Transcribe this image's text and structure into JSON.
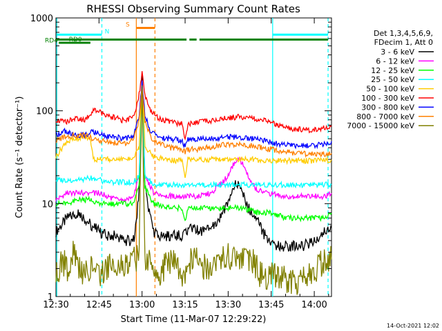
{
  "chart_data": {
    "type": "line",
    "title": "RHESSI Observing Summary Count Rates",
    "xlabel": "Start Time (11-Mar-07 12:29:22)",
    "ylabel": "Count Rate (s⁻¹ detector⁻¹)",
    "y_scale": "log",
    "ylim": [
      1,
      1000
    ],
    "xlim_minutes_after_1230": [
      0,
      96
    ],
    "x_tick_labels": [
      "12:30",
      "12:45",
      "13:00",
      "13:15",
      "13:30",
      "13:45",
      "14:00"
    ],
    "x_tick_minutes": [
      0,
      15,
      30,
      45,
      60,
      75,
      90
    ],
    "y_tick_labels": [
      "1",
      "10",
      "100",
      "1000"
    ],
    "y_tick_values": [
      1,
      10,
      100,
      1000
    ],
    "legend_header": [
      "Det 1,3,4,5,6,9,",
      "FDecim 1, Att 0"
    ],
    "legend_position": "right",
    "series": [
      {
        "name": "3 - 6 keV",
        "color": "#000000",
        "x": [
          0,
          4,
          8,
          12,
          15,
          18,
          21,
          24,
          27,
          28,
          29,
          30,
          31,
          34,
          36,
          40,
          44,
          46,
          48,
          50,
          52,
          55,
          57,
          59,
          61,
          63,
          65,
          67,
          70,
          72,
          75,
          78,
          82,
          86,
          90,
          94,
          96
        ],
        "y": [
          5,
          7,
          8,
          6,
          5,
          4.5,
          4.5,
          4,
          4,
          6,
          14,
          230,
          14,
          5,
          4.5,
          4.5,
          4.5,
          5,
          5.5,
          5,
          5,
          6,
          7,
          9,
          13,
          17,
          13,
          9,
          7,
          5,
          3.5,
          3.5,
          3.5,
          3.5,
          4,
          5,
          5.5
        ]
      },
      {
        "name": "6 - 12 keV",
        "color": "#ff00ff",
        "x": [
          0,
          4,
          8,
          12,
          15,
          18,
          21,
          24,
          27,
          29,
          30,
          31,
          34,
          40,
          46,
          50,
          54,
          58,
          60,
          62,
          64,
          66,
          68,
          70,
          74,
          80,
          86,
          90,
          94,
          96
        ],
        "y": [
          11,
          13,
          13,
          13,
          13,
          12,
          11,
          11,
          12,
          20,
          200,
          20,
          13,
          12,
          12,
          12,
          13,
          17,
          20,
          27,
          30,
          24,
          17,
          14,
          13,
          12,
          12,
          12,
          12,
          13
        ]
      },
      {
        "name": "12 - 25 keV",
        "color": "#00ff00",
        "x": [
          0,
          4,
          8,
          12,
          15,
          18,
          21,
          24,
          27,
          29,
          30,
          31,
          34,
          40,
          44,
          45,
          46,
          50,
          55,
          60,
          65,
          70,
          75,
          80,
          86,
          90,
          94,
          96
        ],
        "y": [
          10,
          10,
          11,
          11,
          10,
          10,
          10,
          10,
          10,
          15,
          200,
          15,
          10,
          9,
          9,
          6.5,
          9,
          9,
          9,
          9,
          9,
          8,
          8,
          7,
          7,
          7,
          7,
          8
        ]
      },
      {
        "name": "25 - 50 keV",
        "color": "#00ffff",
        "x": [
          0,
          4,
          8,
          12,
          15,
          18,
          21,
          24,
          27,
          29,
          30,
          31,
          34,
          40,
          46,
          52,
          58,
          64,
          70,
          76,
          82,
          88,
          94,
          96
        ],
        "y": [
          18,
          18,
          18,
          19,
          18,
          17,
          17,
          17,
          17,
          20,
          200,
          20,
          16,
          16,
          16,
          16,
          16,
          16,
          16,
          16,
          16,
          16,
          16,
          16
        ]
      },
      {
        "name": "50 - 100 keV",
        "color": "#ffcc00",
        "x": [
          0,
          3,
          6,
          10,
          12,
          13,
          15,
          18,
          21,
          24,
          27,
          29,
          30,
          31,
          34,
          38,
          42,
          44,
          45,
          46,
          50,
          56,
          62,
          68,
          74,
          80,
          86,
          90,
          94,
          96
        ],
        "y": [
          32,
          44,
          50,
          52,
          50,
          30,
          30,
          30,
          30,
          30,
          32,
          40,
          200,
          42,
          32,
          30,
          29,
          29,
          20,
          30,
          30,
          30,
          30,
          30,
          29,
          29,
          29,
          29,
          29,
          30
        ]
      },
      {
        "name": "100 - 300 keV",
        "color": "#ff0000",
        "x": [
          0,
          3,
          6,
          10,
          13,
          15,
          18,
          21,
          24,
          27,
          29,
          30,
          31,
          33,
          36,
          40,
          44,
          45,
          46,
          50,
          56,
          60,
          64,
          68,
          72,
          76,
          80,
          84,
          88,
          92,
          96
        ],
        "y": [
          80,
          75,
          82,
          80,
          100,
          98,
          90,
          83,
          78,
          85,
          150,
          250,
          150,
          100,
          82,
          75,
          72,
          50,
          72,
          75,
          80,
          84,
          86,
          84,
          79,
          72,
          66,
          63,
          62,
          63,
          70
        ]
      },
      {
        "name": "300 - 800 keV",
        "color": "#0000ff",
        "x": [
          0,
          3,
          6,
          10,
          13,
          15,
          18,
          21,
          24,
          27,
          29,
          30,
          31,
          33,
          36,
          40,
          44,
          45,
          46,
          50,
          56,
          60,
          64,
          68,
          72,
          76,
          80,
          84,
          88,
          92,
          96
        ],
        "y": [
          55,
          60,
          55,
          55,
          60,
          56,
          53,
          52,
          50,
          54,
          90,
          200,
          90,
          60,
          52,
          50,
          48,
          40,
          49,
          50,
          51,
          52,
          52,
          50,
          48,
          45,
          43,
          42,
          42,
          43,
          47
        ]
      },
      {
        "name": "800 - 7000 keV",
        "color": "#ff8000",
        "x": [
          0,
          3,
          6,
          10,
          13,
          15,
          18,
          21,
          24,
          27,
          29,
          30,
          31,
          33,
          36,
          40,
          44,
          45,
          46,
          50,
          56,
          60,
          64,
          68,
          72,
          76,
          80,
          84,
          88,
          92,
          96
        ],
        "y": [
          48,
          52,
          55,
          54,
          50,
          48,
          46,
          45,
          44,
          48,
          80,
          180,
          80,
          52,
          44,
          40,
          38,
          36,
          38,
          39,
          42,
          44,
          43,
          42,
          40,
          38,
          36,
          35,
          34,
          34,
          35
        ]
      },
      {
        "name": "7000 - 15000 keV",
        "color": "#808000",
        "x": [
          0,
          2,
          4,
          6,
          10,
          12,
          16,
          20,
          24,
          28,
          29,
          30,
          31,
          32,
          36,
          40,
          44,
          48,
          52,
          56,
          60,
          64,
          68,
          72,
          76,
          80,
          84,
          88,
          92,
          96
        ],
        "y": [
          1.6,
          2.5,
          2,
          3,
          1.6,
          2.2,
          1.7,
          2.5,
          2,
          2.6,
          2.8,
          190,
          2.8,
          2.4,
          1.8,
          2.5,
          1.6,
          2.8,
          2,
          2.5,
          2.7,
          2.3,
          2.5,
          1.6,
          1.8,
          1.5,
          1.4,
          1.6,
          2.2,
          2.5
        ]
      }
    ],
    "annotations": {
      "vertical_lines": [
        {
          "minute": 0.3,
          "color": "#00ffff",
          "style": "solid"
        },
        {
          "minute": 16,
          "color": "#00ffff",
          "style": "dashed"
        },
        {
          "minute": 28,
          "color": "#ff8000",
          "style": "solid"
        },
        {
          "minute": 34.5,
          "color": "#ff8000",
          "style": "dashed"
        },
        {
          "minute": 75.5,
          "color": "#00ffff",
          "style": "solid"
        },
        {
          "minute": 94.8,
          "color": "#00ffff",
          "style": "dashed"
        }
      ],
      "bars": [
        {
          "label": "N",
          "color": "#00ffff",
          "segments": [
            [
              0.3,
              16
            ],
            [
              75.5,
              94.8
            ]
          ],
          "level": 660
        },
        {
          "label": "S",
          "color": "#ff8000",
          "segments": [
            [
              28,
              34.5
            ]
          ],
          "level": 780
        },
        {
          "label": "RD0",
          "color": "#008000",
          "segments": [
            [
              1,
              12
            ]
          ],
          "level": 540
        },
        {
          "label": "RD4",
          "color": "#008000",
          "segments": [
            [
              0,
              45.5
            ],
            [
              46.5,
              49
            ],
            [
              50,
              94.8
            ]
          ],
          "level": 585
        }
      ]
    }
  },
  "footer": {
    "timestamp": "14-Oct-2021 12:02"
  }
}
